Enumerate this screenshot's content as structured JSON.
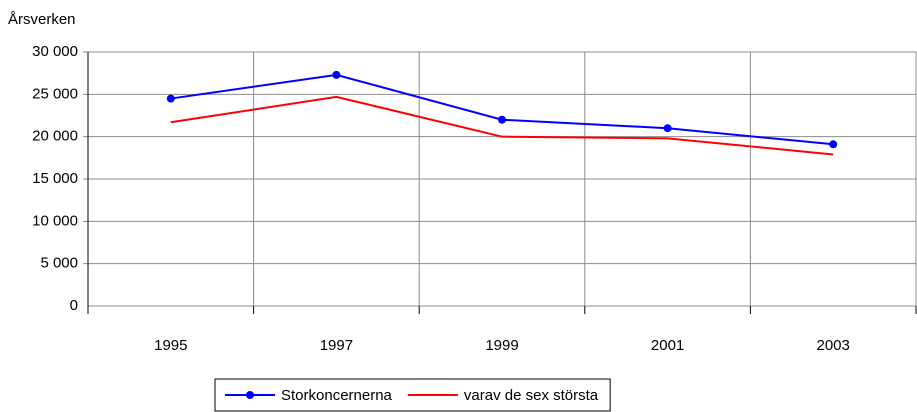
{
  "chart_data": {
    "type": "line",
    "y_label": "Årsverken",
    "categories": [
      "1995",
      "1997",
      "1999",
      "2001",
      "2003"
    ],
    "series": [
      {
        "name": "Storkoncernerna",
        "color": "#0000ff",
        "values": [
          24500,
          27300,
          22000,
          21000,
          19100
        ]
      },
      {
        "name": "varav de sex största",
        "color": "#ff0000",
        "values": [
          21700,
          24700,
          20000,
          19800,
          17900
        ]
      }
    ],
    "markers": [
      true,
      false
    ],
    "ylim": [
      0,
      30000
    ],
    "yticks": [
      0,
      {
        "value": 5000,
        "label": "5 000"
      },
      {
        "value": 10000,
        "label": "10 000"
      },
      {
        "value": 15000,
        "label": "15 000"
      },
      {
        "value": 20000,
        "label": "20 000"
      },
      {
        "value": 25000,
        "label": "25 000"
      },
      {
        "value": 30000,
        "label": "30 000"
      }
    ],
    "grid": true,
    "legend": "bottom"
  }
}
